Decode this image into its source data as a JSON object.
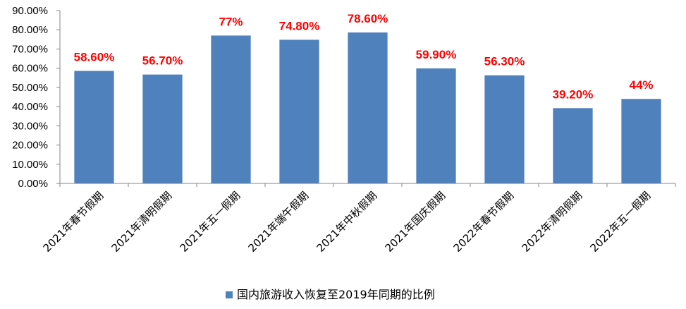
{
  "chart_data": {
    "type": "bar",
    "categories": [
      "2021年春节假期",
      "2021年清明假期",
      "2021年五一假期",
      "2021年端午假期",
      "2021年中秋假期",
      "2021年国庆假期",
      "2022年春节假期",
      "2022年清明假期",
      "2022年五一假期"
    ],
    "values": [
      58.6,
      56.7,
      77,
      74.8,
      78.6,
      59.9,
      56.3,
      39.2,
      44
    ],
    "data_labels": [
      "58.60%",
      "56.70%",
      "77%",
      "74.80%",
      "78.60%",
      "59.90%",
      "56.30%",
      "39.20%",
      "44%"
    ],
    "series_name": "国内旅游收入恢复至2019年同期的比例",
    "ylim": [
      0,
      90
    ],
    "yticks": [
      "0.00%",
      "10.00%",
      "20.00%",
      "30.00%",
      "40.00%",
      "50.00%",
      "60.00%",
      "70.00%",
      "80.00%",
      "90.00%"
    ],
    "title": "",
    "xlabel": "",
    "ylabel": "",
    "grid": false,
    "legend_position": "bottom",
    "colors": {
      "bar": "#4f81bd",
      "label": "#ff0000",
      "axis": "#868686"
    }
  }
}
